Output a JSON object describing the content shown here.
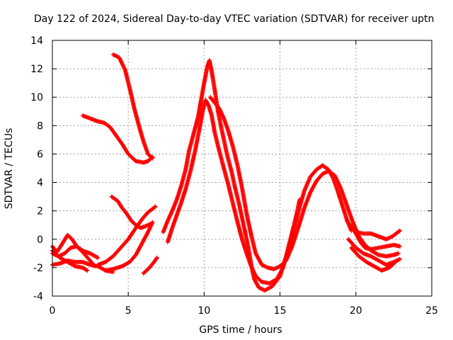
{
  "chart_data": {
    "type": "scatter",
    "title": "Day 122 of 2024, Sidereal Day-to-day VTEC variation (SDTVAR) for receiver uptn",
    "xlabel": "GPS time / hours",
    "ylabel": "SDTVAR / TECUs",
    "xlim": [
      0,
      25
    ],
    "ylim": [
      -4,
      14
    ],
    "xticks": [
      0,
      5,
      10,
      15,
      20,
      25
    ],
    "yticks": [
      -4,
      -2,
      0,
      2,
      4,
      6,
      8,
      10,
      12,
      14
    ],
    "grid": true,
    "marker": "+",
    "color": "#ff0000",
    "series": [
      {
        "name": "arc-1",
        "points": [
          [
            4.0,
            13.0
          ],
          [
            4.4,
            12.8
          ],
          [
            4.8,
            11.9
          ],
          [
            5.1,
            10.6
          ],
          [
            5.4,
            9.2
          ],
          [
            5.7,
            8.0
          ],
          [
            6.0,
            6.9
          ],
          [
            6.3,
            6.0
          ],
          [
            6.6,
            5.7
          ]
        ]
      },
      {
        "name": "arc-2",
        "points": [
          [
            2.0,
            8.7
          ],
          [
            2.5,
            8.5
          ],
          [
            3.0,
            8.3
          ],
          [
            3.4,
            8.2
          ],
          [
            3.8,
            7.9
          ],
          [
            4.2,
            7.3
          ],
          [
            4.6,
            6.7
          ],
          [
            5.0,
            6.0
          ],
          [
            5.5,
            5.5
          ],
          [
            6.0,
            5.4
          ],
          [
            6.3,
            5.5
          ],
          [
            6.6,
            5.8
          ]
        ]
      },
      {
        "name": "arc-3",
        "points": [
          [
            3.9,
            3.0
          ],
          [
            4.3,
            2.7
          ],
          [
            4.6,
            2.2
          ],
          [
            4.9,
            1.8
          ],
          [
            5.2,
            1.3
          ],
          [
            5.5,
            1.0
          ],
          [
            5.8,
            0.8
          ],
          [
            6.1,
            0.9
          ],
          [
            6.5,
            1.1
          ]
        ]
      },
      {
        "name": "arc-4",
        "points": [
          [
            3.0,
            -1.8
          ],
          [
            3.5,
            -1.6
          ],
          [
            4.0,
            -1.2
          ],
          [
            4.5,
            -0.6
          ],
          [
            5.0,
            0.0
          ],
          [
            5.5,
            0.8
          ],
          [
            5.9,
            1.4
          ],
          [
            6.3,
            1.9
          ],
          [
            6.8,
            2.3
          ]
        ]
      },
      {
        "name": "arc-5",
        "points": [
          [
            3.5,
            -2.2
          ],
          [
            4.0,
            -2.1
          ],
          [
            4.6,
            -1.9
          ],
          [
            5.1,
            -1.6
          ],
          [
            5.5,
            -1.1
          ],
          [
            5.9,
            -0.3
          ],
          [
            6.3,
            0.5
          ],
          [
            6.6,
            1.2
          ]
        ]
      },
      {
        "name": "arc-6",
        "points": [
          [
            6.0,
            -2.4
          ],
          [
            6.4,
            -2.0
          ],
          [
            6.7,
            -1.6
          ],
          [
            6.9,
            -1.3
          ]
        ]
      },
      {
        "name": "arc-7",
        "points": [
          [
            0.0,
            -0.5
          ],
          [
            0.3,
            -0.9
          ],
          [
            0.6,
            -0.4
          ],
          [
            1.0,
            0.3
          ],
          [
            1.3,
            0.0
          ],
          [
            1.6,
            -0.5
          ],
          [
            2.0,
            -0.8
          ],
          [
            2.5,
            -1.0
          ],
          [
            3.0,
            -1.3
          ]
        ]
      },
      {
        "name": "arc-8",
        "points": [
          [
            0.0,
            -1.0
          ],
          [
            0.4,
            -1.2
          ],
          [
            0.8,
            -1.0
          ],
          [
            1.2,
            -0.6
          ],
          [
            1.6,
            -0.5
          ],
          [
            2.0,
            -0.9
          ],
          [
            2.4,
            -1.4
          ],
          [
            2.8,
            -1.9
          ]
        ]
      },
      {
        "name": "arc-9",
        "points": [
          [
            0.0,
            -1.8
          ],
          [
            0.5,
            -1.7
          ],
          [
            1.0,
            -1.5
          ],
          [
            1.5,
            -1.6
          ],
          [
            2.0,
            -1.6
          ],
          [
            2.5,
            -1.8
          ],
          [
            3.0,
            -1.9
          ],
          [
            3.5,
            -2.2
          ],
          [
            4.0,
            -2.3
          ]
        ]
      },
      {
        "name": "arc-10",
        "points": [
          [
            0.0,
            -0.8
          ],
          [
            0.5,
            -1.3
          ],
          [
            1.0,
            -1.6
          ],
          [
            1.5,
            -1.9
          ],
          [
            2.0,
            -2.0
          ],
          [
            2.3,
            -2.2
          ]
        ]
      },
      {
        "name": "arc-11",
        "points": [
          [
            7.3,
            0.5
          ],
          [
            7.6,
            1.3
          ],
          [
            7.9,
            2.0
          ],
          [
            8.2,
            2.8
          ],
          [
            8.5,
            3.8
          ],
          [
            8.8,
            5.0
          ],
          [
            9.0,
            6.2
          ],
          [
            9.3,
            7.4
          ],
          [
            9.6,
            8.6
          ],
          [
            9.8,
            9.8
          ],
          [
            10.0,
            11.0
          ],
          [
            10.2,
            12.1
          ],
          [
            10.35,
            12.6
          ],
          [
            10.5,
            11.8
          ],
          [
            10.7,
            10.5
          ],
          [
            10.9,
            9.1
          ],
          [
            11.1,
            8.0
          ],
          [
            11.3,
            7.0
          ],
          [
            11.5,
            6.0
          ],
          [
            11.8,
            4.8
          ],
          [
            12.0,
            3.8
          ],
          [
            12.3,
            2.5
          ],
          [
            12.6,
            1.0
          ],
          [
            12.9,
            -0.5
          ],
          [
            13.1,
            -1.8
          ],
          [
            13.3,
            -2.8
          ],
          [
            13.6,
            -3.4
          ],
          [
            14.0,
            -3.6
          ],
          [
            14.5,
            -3.3
          ],
          [
            15.0,
            -2.6
          ],
          [
            15.4,
            -1.2
          ],
          [
            15.8,
            0.5
          ],
          [
            16.1,
            1.8
          ],
          [
            16.3,
            2.8
          ]
        ]
      },
      {
        "name": "arc-12",
        "points": [
          [
            7.6,
            -0.2
          ],
          [
            7.9,
            0.8
          ],
          [
            8.2,
            1.7
          ],
          [
            8.5,
            2.6
          ],
          [
            8.8,
            3.6
          ],
          [
            9.1,
            4.8
          ],
          [
            9.4,
            6.2
          ],
          [
            9.7,
            7.8
          ],
          [
            9.9,
            9.0
          ],
          [
            10.1,
            9.8
          ],
          [
            10.3,
            9.4
          ],
          [
            10.5,
            8.7
          ],
          [
            10.7,
            7.5
          ],
          [
            11.0,
            6.2
          ],
          [
            11.3,
            5.0
          ],
          [
            11.6,
            3.8
          ],
          [
            11.9,
            2.5
          ],
          [
            12.2,
            1.2
          ],
          [
            12.5,
            0.0
          ],
          [
            12.8,
            -1.0
          ],
          [
            13.1,
            -1.9
          ],
          [
            13.4,
            -2.6
          ],
          [
            13.8,
            -3.0
          ],
          [
            14.3,
            -3.1
          ],
          [
            14.8,
            -2.8
          ],
          [
            15.2,
            -2.0
          ],
          [
            15.5,
            -0.9
          ],
          [
            15.9,
            0.6
          ],
          [
            16.3,
            2.3
          ],
          [
            16.6,
            3.4
          ],
          [
            17.0,
            4.4
          ],
          [
            17.4,
            4.9
          ],
          [
            17.8,
            5.2
          ],
          [
            18.2,
            4.9
          ],
          [
            18.5,
            4.3
          ],
          [
            18.8,
            3.4
          ],
          [
            19.1,
            2.4
          ],
          [
            19.4,
            1.4
          ],
          [
            19.7,
            0.6
          ]
        ]
      },
      {
        "name": "arc-13",
        "points": [
          [
            10.4,
            10.0
          ],
          [
            10.7,
            9.6
          ],
          [
            11.0,
            9.2
          ],
          [
            11.3,
            8.5
          ],
          [
            11.6,
            7.6
          ],
          [
            11.9,
            6.5
          ],
          [
            12.2,
            5.2
          ],
          [
            12.5,
            3.6
          ],
          [
            12.8,
            1.8
          ],
          [
            13.1,
            0.3
          ],
          [
            13.4,
            -1.0
          ],
          [
            13.8,
            -1.8
          ],
          [
            14.2,
            -2.0
          ],
          [
            14.6,
            -2.1
          ],
          [
            15.0,
            -1.9
          ],
          [
            15.4,
            -1.5
          ],
          [
            15.8,
            -0.5
          ],
          [
            16.2,
            0.8
          ],
          [
            16.6,
            2.2
          ],
          [
            17.0,
            3.3
          ],
          [
            17.4,
            4.1
          ],
          [
            17.8,
            4.6
          ],
          [
            18.2,
            4.8
          ],
          [
            18.6,
            4.5
          ],
          [
            19.0,
            3.6
          ],
          [
            19.4,
            2.4
          ],
          [
            19.8,
            1.2
          ],
          [
            20.2,
            0.2
          ],
          [
            20.6,
            -0.4
          ],
          [
            21.0,
            -0.8
          ],
          [
            21.5,
            -1.1
          ],
          [
            22.0,
            -1.2
          ],
          [
            22.5,
            -1.1
          ],
          [
            22.8,
            -1.0
          ]
        ]
      },
      {
        "name": "arc-14",
        "points": [
          [
            19.5,
            0.0
          ],
          [
            20.0,
            -0.6
          ],
          [
            20.5,
            -1.0
          ],
          [
            21.0,
            -1.2
          ],
          [
            21.5,
            -1.5
          ],
          [
            22.0,
            -1.8
          ],
          [
            22.5,
            -1.6
          ],
          [
            22.9,
            -1.4
          ]
        ]
      },
      {
        "name": "arc-15",
        "points": [
          [
            19.7,
            -0.6
          ],
          [
            20.2,
            -1.2
          ],
          [
            20.7,
            -1.6
          ],
          [
            21.2,
            -1.9
          ],
          [
            21.7,
            -2.2
          ],
          [
            22.2,
            -2.0
          ],
          [
            22.7,
            -1.5
          ]
        ]
      },
      {
        "name": "arc-16",
        "points": [
          [
            20.0,
            0.5
          ],
          [
            20.5,
            0.4
          ],
          [
            21.0,
            0.4
          ],
          [
            21.5,
            0.2
          ],
          [
            22.0,
            0.0
          ],
          [
            22.4,
            0.2
          ],
          [
            22.9,
            0.6
          ]
        ]
      },
      {
        "name": "arc-17",
        "points": [
          [
            19.4,
            1.3
          ],
          [
            19.7,
            0.9
          ],
          [
            20.0,
            0.4
          ],
          [
            20.3,
            -0.2
          ],
          [
            20.6,
            -0.6
          ],
          [
            21.0,
            -0.7
          ],
          [
            21.5,
            -0.6
          ],
          [
            22.0,
            -0.5
          ],
          [
            22.5,
            -0.4
          ],
          [
            22.9,
            -0.5
          ]
        ]
      }
    ]
  }
}
